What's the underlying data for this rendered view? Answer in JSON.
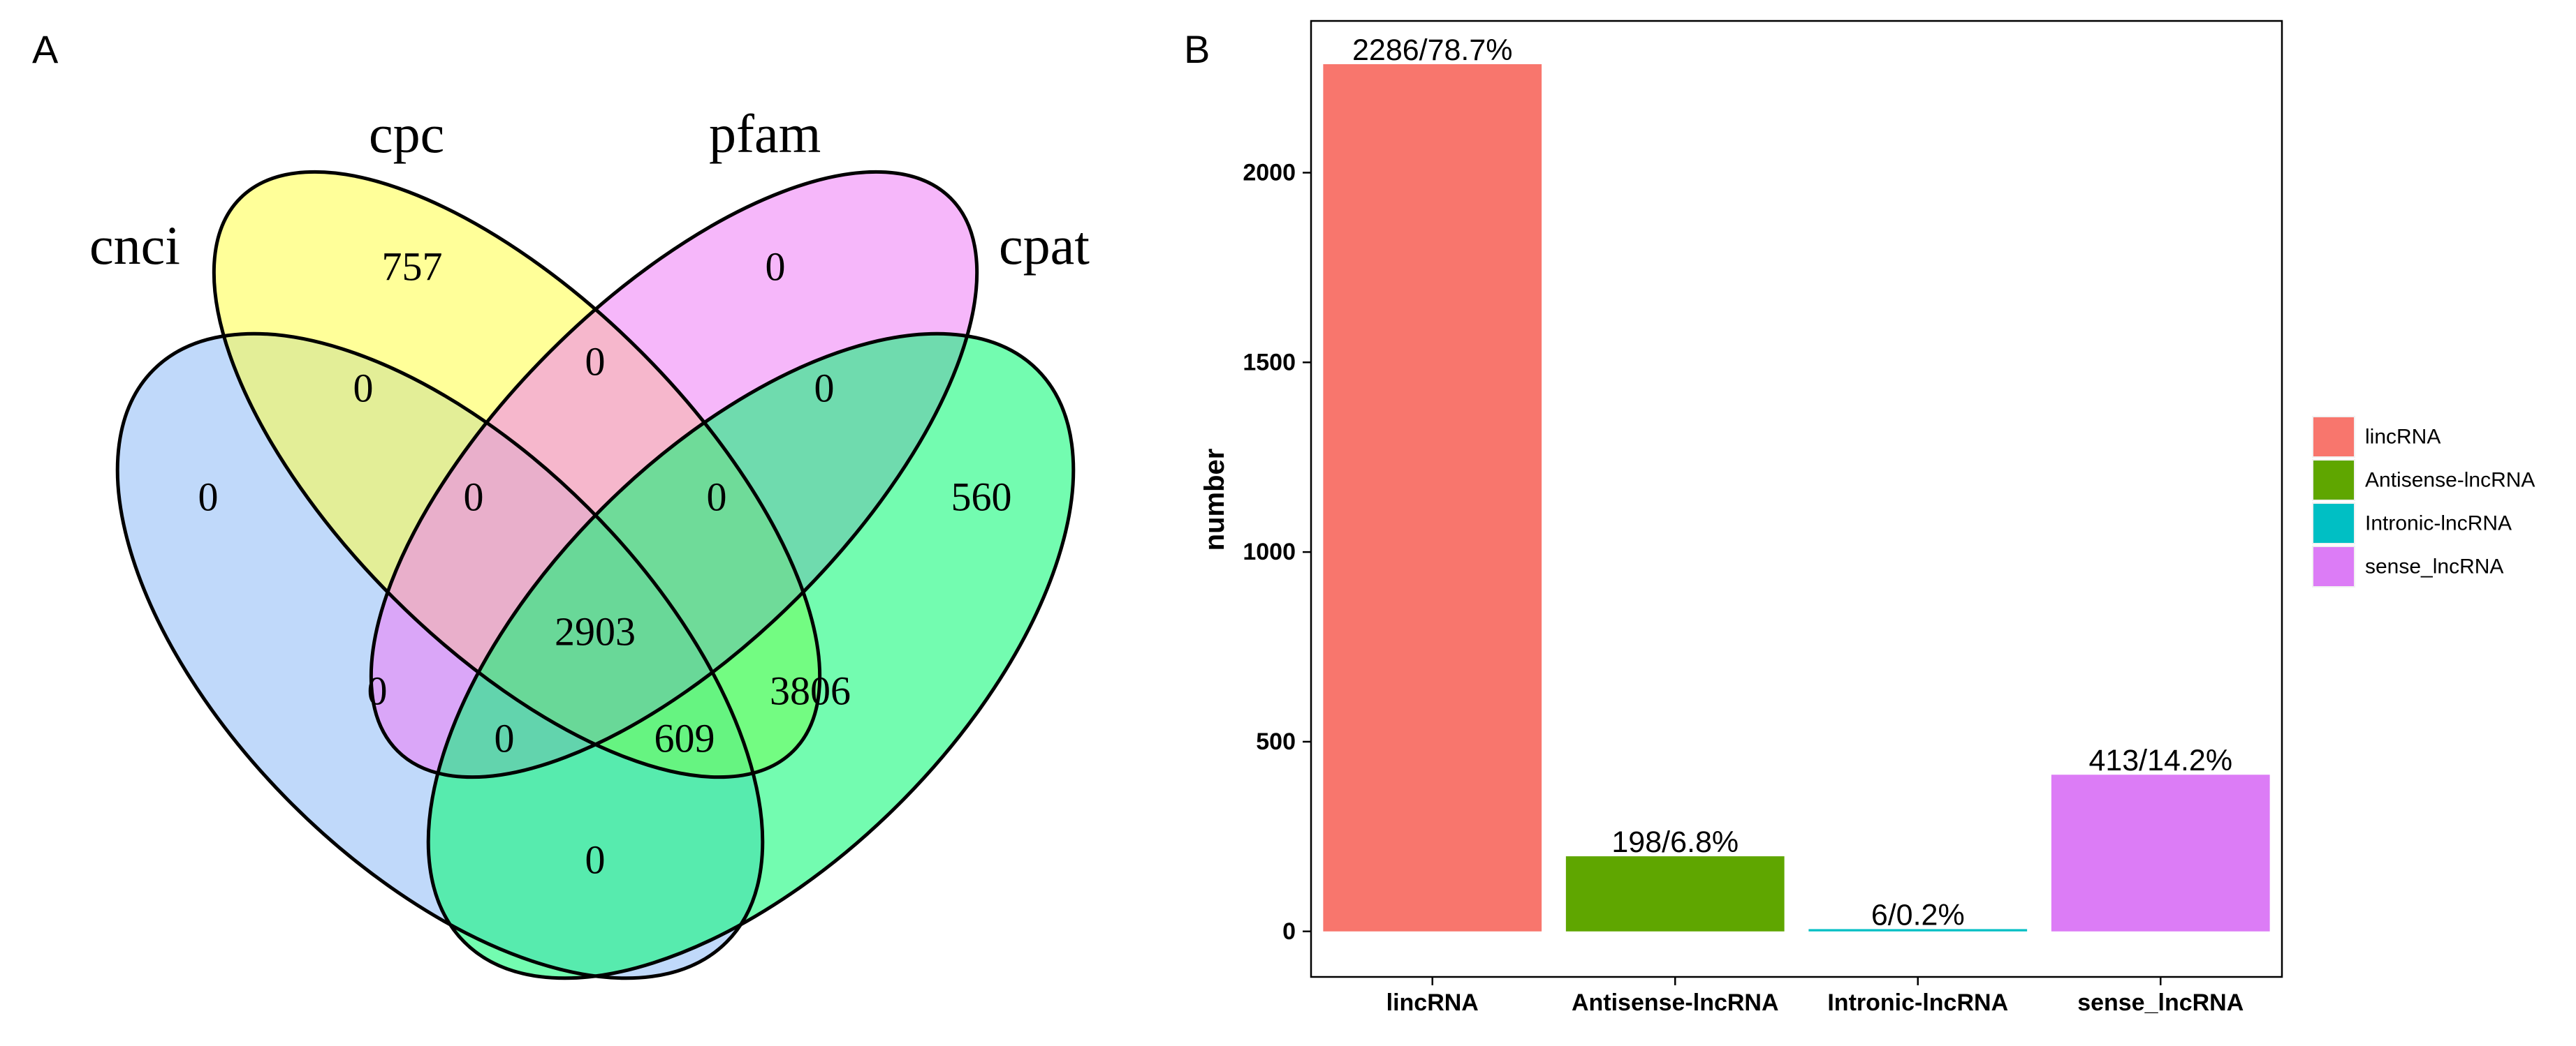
{
  "panels": {
    "a": "A",
    "b": "B"
  },
  "venn": {
    "set_labels": {
      "cnci": "cnci",
      "cpc": "cpc",
      "pfam": "pfam",
      "cpat": "cpat"
    },
    "colors": {
      "cnci": "#8db9f5",
      "cpc": "#ffff45",
      "pfam": "#ee7cf5",
      "cpat": "#00fa70"
    },
    "counts": {
      "cnci_only": "0",
      "cpc_only": "757",
      "pfam_only": "0",
      "cpat_only": "560",
      "cnci_cpc": "0",
      "cpc_pfam": "0",
      "pfam_cpat": "0",
      "cnci_cpc_pfam": "0",
      "cpc_pfam_cpat": "0",
      "all_four": "2903",
      "cnci_pfam": "0",
      "cpc_cpat": "3806",
      "cnci_pfam_cpat": "0",
      "cnci_cpc_cpat": "609",
      "cnci_cpat": "0"
    }
  },
  "chart_data": {
    "type": "bar",
    "title": "",
    "xlabel": "",
    "ylabel": "number",
    "categories": [
      "lincRNA",
      "Antisense-lncRNA",
      "Intronic-lncRNA",
      "sense_lncRNA"
    ],
    "values": [
      2286,
      198,
      6,
      413
    ],
    "data_labels": [
      "2286/78.7%",
      "198/6.8%",
      "6/0.2%",
      "413/14.2%"
    ],
    "colors": [
      "#f8766d",
      "#5fa600",
      "#00bfc4",
      "#dc7cf6"
    ],
    "yticks": [
      0,
      500,
      1000,
      1500,
      2000
    ],
    "ylim": [
      -120,
      2400
    ],
    "legend": {
      "position": "right",
      "entries": [
        "lincRNA",
        "Antisense-lncRNA",
        "Intronic-lncRNA",
        "sense_lncRNA"
      ]
    },
    "grid": false
  }
}
